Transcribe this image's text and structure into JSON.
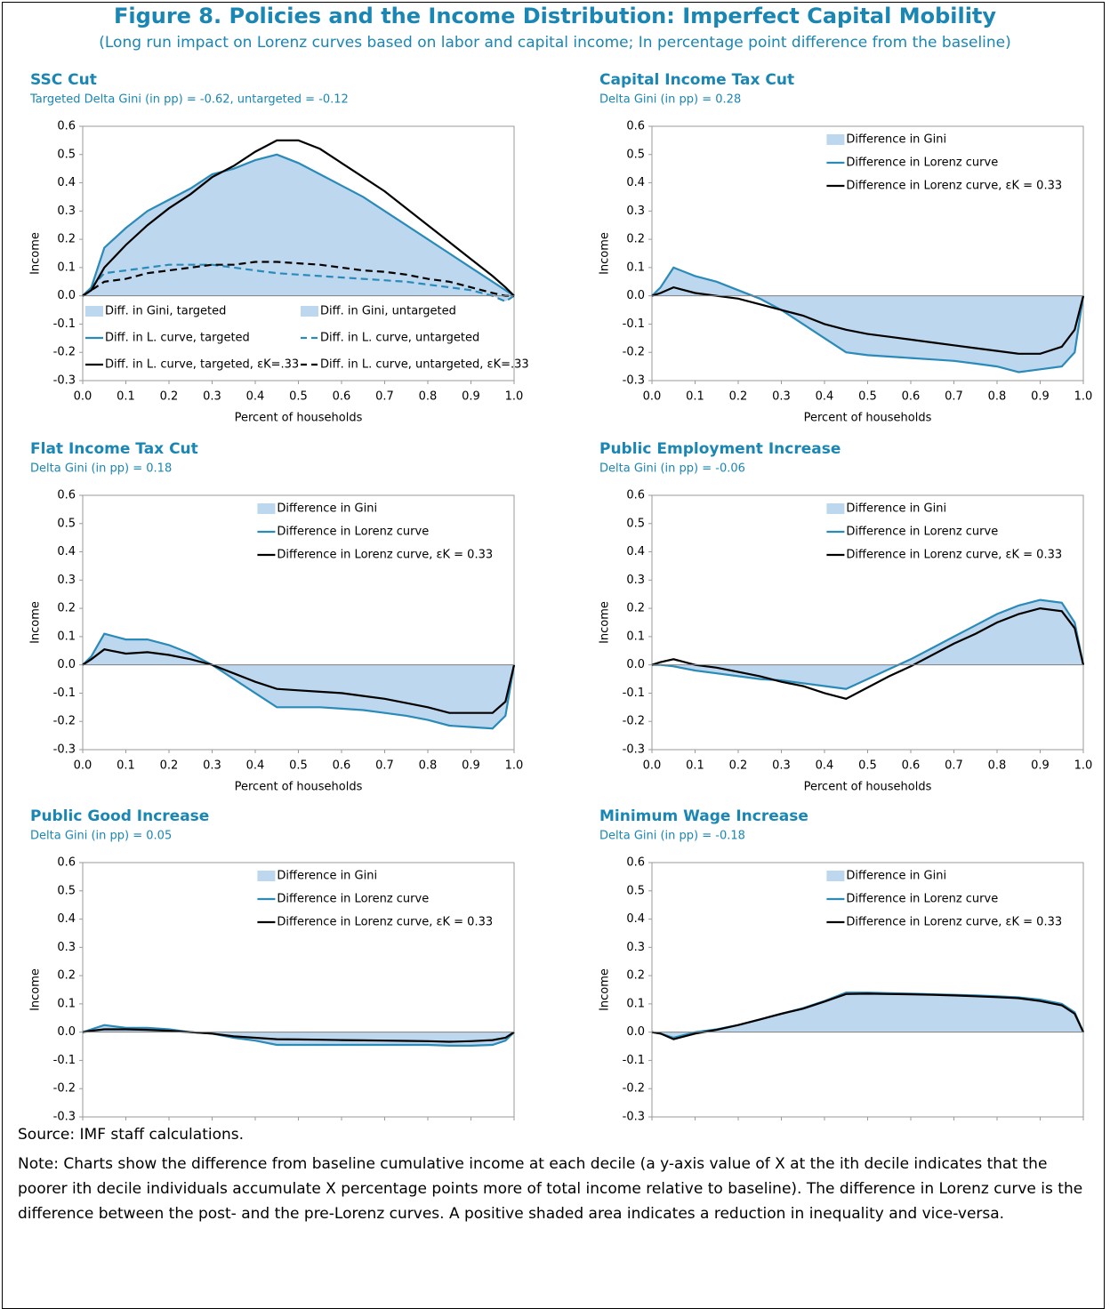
{
  "title": "Figure 8. Policies and the Income Distribution: Imperfect Capital Mobility",
  "subtitle": "(Long run impact on Lorenz curves based on labor and capital income; In percentage point difference from the baseline)",
  "source": "Source: IMF staff calculations.",
  "note": "Note: Charts show the difference from baseline cumulative income at each decile (a y-axis value of X at the ith decile indicates that the poorer ith decile individuals accumulate X percentage points more of total income relative to baseline). The difference in Lorenz curve is the difference between the post- and the pre-Lorenz curves. A positive shaded area indicates a reduction in inequality and vice-versa.",
  "chart_data": [
    {
      "type": "line",
      "title": "SSC Cut",
      "subtitle": "Targeted Delta Gini (in pp) = -0.62, untargeted = -0.12",
      "xlabel": "Percent of households",
      "ylabel": "Income",
      "legend": "lower",
      "xlim": [
        0,
        1
      ],
      "ylim": [
        -0.3,
        0.6
      ],
      "xticks": [
        {
          "value": 0,
          "label": "0.0"
        },
        0.1,
        0.2,
        0.3,
        0.4,
        0.5,
        0.6,
        0.7,
        0.8,
        0.9,
        {
          "value": 1,
          "label": "1.0"
        }
      ],
      "yticks": [
        -0.3,
        -0.2,
        -0.1,
        {
          "value": 0,
          "label": "0.0"
        },
        0.1,
        0.2,
        0.3,
        0.4,
        0.5,
        0.6
      ],
      "x": [
        0,
        0.02,
        0.05,
        0.1,
        0.15,
        0.2,
        0.25,
        0.3,
        0.35,
        0.4,
        0.45,
        0.5,
        0.55,
        0.6,
        0.65,
        0.7,
        0.75,
        0.8,
        0.85,
        0.9,
        0.95,
        0.98,
        1
      ],
      "series": [
        {
          "name": "Diff. in Gini, targeted",
          "kind": "area",
          "color": "#bdd7ee",
          "values": [
            0,
            0.03,
            0.17,
            0.24,
            0.3,
            0.34,
            0.38,
            0.43,
            0.45,
            0.48,
            0.5,
            0.47,
            0.43,
            0.39,
            0.35,
            0.3,
            0.25,
            0.2,
            0.15,
            0.1,
            0.05,
            0.02,
            0
          ]
        },
        {
          "name": "Diff. in Gini, untargeted",
          "kind": "area",
          "color": "#bdd7ee",
          "values": [
            0,
            0.03,
            0.08,
            0.09,
            0.1,
            0.11,
            0.11,
            0.11,
            0.1,
            0.09,
            0.08,
            0.075,
            0.07,
            0.065,
            0.06,
            0.055,
            0.05,
            0.04,
            0.03,
            0.02,
            0,
            -0.02,
            0
          ]
        },
        {
          "name": "Diff. in L. curve, targeted",
          "kind": "line",
          "color": "#2a8ab8",
          "values": [
            0,
            0.03,
            0.17,
            0.24,
            0.3,
            0.34,
            0.38,
            0.43,
            0.45,
            0.48,
            0.5,
            0.47,
            0.43,
            0.39,
            0.35,
            0.3,
            0.25,
            0.2,
            0.15,
            0.1,
            0.05,
            0.02,
            0
          ]
        },
        {
          "name": "Diff. in L. curve, untargeted",
          "kind": "line",
          "dash": true,
          "color": "#2a8ab8",
          "values": [
            0,
            0.03,
            0.08,
            0.09,
            0.1,
            0.11,
            0.11,
            0.11,
            0.1,
            0.09,
            0.08,
            0.075,
            0.07,
            0.065,
            0.06,
            0.055,
            0.05,
            0.04,
            0.03,
            0.02,
            0,
            -0.02,
            0
          ]
        },
        {
          "name": "Diff. in L. curve, targeted, εK=.33",
          "kind": "line",
          "color": "#000000",
          "values": [
            0,
            0.02,
            0.1,
            0.18,
            0.25,
            0.31,
            0.36,
            0.42,
            0.46,
            0.51,
            0.55,
            0.55,
            0.52,
            0.47,
            0.42,
            0.37,
            0.31,
            0.25,
            0.19,
            0.13,
            0.07,
            0.03,
            0
          ]
        },
        {
          "name": "Diff. in L. curve, untargeted, εK=.33",
          "kind": "line",
          "dash": true,
          "color": "#000000",
          "values": [
            0,
            0.02,
            0.05,
            0.06,
            0.08,
            0.09,
            0.1,
            0.11,
            0.11,
            0.12,
            0.12,
            0.115,
            0.11,
            0.1,
            0.09,
            0.085,
            0.075,
            0.06,
            0.05,
            0.03,
            0.01,
            0,
            0
          ]
        }
      ]
    },
    {
      "type": "line",
      "title": "Capital Income Tax Cut",
      "subtitle": "Delta Gini (in pp) = 0.28",
      "xlabel": "Percent of households",
      "ylabel": "Income",
      "legend": "upper",
      "xlim": [
        0,
        1
      ],
      "ylim": [
        -0.3,
        0.6
      ],
      "xticks": [
        {
          "value": 0,
          "label": "0.0"
        },
        0.1,
        0.2,
        0.3,
        0.4,
        0.5,
        0.6,
        0.7,
        0.8,
        0.9,
        {
          "value": 1,
          "label": "1.0"
        }
      ],
      "yticks": [
        -0.3,
        -0.2,
        -0.1,
        {
          "value": 0,
          "label": "0.0"
        },
        0.1,
        0.2,
        0.3,
        0.4,
        0.5,
        0.6
      ],
      "x": [
        0,
        0.02,
        0.05,
        0.1,
        0.15,
        0.2,
        0.25,
        0.3,
        0.35,
        0.4,
        0.45,
        0.5,
        0.55,
        0.6,
        0.65,
        0.7,
        0.75,
        0.8,
        0.85,
        0.9,
        0.95,
        0.98,
        1
      ],
      "series": [
        {
          "name": "Difference in Gini",
          "kind": "area",
          "color": "#bdd7ee",
          "values": [
            0,
            0.03,
            0.1,
            0.07,
            0.05,
            0.02,
            -0.01,
            -0.05,
            -0.1,
            -0.15,
            -0.2,
            -0.21,
            -0.215,
            -0.22,
            -0.225,
            -0.23,
            -0.24,
            -0.25,
            -0.27,
            -0.26,
            -0.25,
            -0.2,
            0
          ]
        },
        {
          "name": "Difference in Lorenz curve",
          "kind": "line",
          "color": "#2a8ab8",
          "values": [
            0,
            0.03,
            0.1,
            0.07,
            0.05,
            0.02,
            -0.01,
            -0.05,
            -0.1,
            -0.15,
            -0.2,
            -0.21,
            -0.215,
            -0.22,
            -0.225,
            -0.23,
            -0.24,
            -0.25,
            -0.27,
            -0.26,
            -0.25,
            -0.2,
            0
          ]
        },
        {
          "name": "Difference in Lorenz curve, εK = 0.33",
          "kind": "line",
          "color": "#000000",
          "values": [
            0,
            0.01,
            0.03,
            0.01,
            0,
            -0.01,
            -0.03,
            -0.05,
            -0.07,
            -0.1,
            -0.12,
            -0.135,
            -0.145,
            -0.155,
            -0.165,
            -0.175,
            -0.185,
            -0.195,
            -0.205,
            -0.205,
            -0.18,
            -0.12,
            0
          ]
        }
      ]
    },
    {
      "type": "line",
      "title": "Flat Income Tax Cut",
      "subtitle": "Delta Gini (in pp) = 0.18",
      "xlabel": "Percent of households",
      "ylabel": "Income",
      "legend": "upper",
      "xlim": [
        0,
        1
      ],
      "ylim": [
        -0.3,
        0.6
      ],
      "xticks": [
        {
          "value": 0,
          "label": "0.0"
        },
        0.1,
        0.2,
        0.3,
        0.4,
        0.5,
        0.6,
        0.7,
        0.8,
        0.9,
        {
          "value": 1,
          "label": "1.0"
        }
      ],
      "yticks": [
        -0.3,
        -0.2,
        -0.1,
        {
          "value": 0,
          "label": "0.0"
        },
        0.1,
        0.2,
        0.3,
        0.4,
        0.5,
        0.6
      ],
      "x": [
        0,
        0.02,
        0.05,
        0.1,
        0.15,
        0.2,
        0.25,
        0.3,
        0.35,
        0.4,
        0.45,
        0.5,
        0.55,
        0.6,
        0.65,
        0.7,
        0.75,
        0.8,
        0.85,
        0.9,
        0.95,
        0.98,
        1
      ],
      "series": [
        {
          "name": "Difference in Gini",
          "kind": "area",
          "color": "#bdd7ee",
          "values": [
            0,
            0.03,
            0.11,
            0.09,
            0.09,
            0.07,
            0.04,
            0,
            -0.05,
            -0.1,
            -0.15,
            -0.15,
            -0.15,
            -0.155,
            -0.16,
            -0.17,
            -0.18,
            -0.195,
            -0.215,
            -0.22,
            -0.225,
            -0.18,
            0
          ]
        },
        {
          "name": "Difference in Lorenz curve",
          "kind": "line",
          "color": "#2a8ab8",
          "values": [
            0,
            0.03,
            0.11,
            0.09,
            0.09,
            0.07,
            0.04,
            0,
            -0.05,
            -0.1,
            -0.15,
            -0.15,
            -0.15,
            -0.155,
            -0.16,
            -0.17,
            -0.18,
            -0.195,
            -0.215,
            -0.22,
            -0.225,
            -0.18,
            0
          ]
        },
        {
          "name": "Difference in Lorenz curve, εK = 0.33",
          "kind": "line",
          "color": "#000000",
          "values": [
            0,
            0.02,
            0.055,
            0.04,
            0.045,
            0.035,
            0.02,
            0,
            -0.03,
            -0.06,
            -0.085,
            -0.09,
            -0.095,
            -0.1,
            -0.11,
            -0.12,
            -0.135,
            -0.15,
            -0.17,
            -0.17,
            -0.17,
            -0.13,
            0
          ]
        }
      ]
    },
    {
      "type": "line",
      "title": "Public Employment Increase",
      "subtitle": "Delta Gini (in pp) = -0.06",
      "xlabel": "Percent of households",
      "ylabel": "Income",
      "legend": "upper",
      "xlim": [
        0,
        1
      ],
      "ylim": [
        -0.3,
        0.6
      ],
      "xticks": [
        {
          "value": 0,
          "label": "0.0"
        },
        0.1,
        0.2,
        0.3,
        0.4,
        0.5,
        0.6,
        0.7,
        0.8,
        0.9,
        {
          "value": 1,
          "label": "1.0"
        }
      ],
      "yticks": [
        -0.3,
        -0.2,
        -0.1,
        {
          "value": 0,
          "label": "0.0"
        },
        0.1,
        0.2,
        0.3,
        0.4,
        0.5,
        0.6
      ],
      "x": [
        0,
        0.02,
        0.05,
        0.1,
        0.15,
        0.2,
        0.25,
        0.3,
        0.35,
        0.4,
        0.45,
        0.5,
        0.55,
        0.6,
        0.65,
        0.7,
        0.75,
        0.8,
        0.85,
        0.9,
        0.95,
        0.98,
        1
      ],
      "series": [
        {
          "name": "Difference in Gini",
          "kind": "area",
          "color": "#bdd7ee",
          "values": [
            0,
            0,
            -0.005,
            -0.02,
            -0.03,
            -0.04,
            -0.05,
            -0.055,
            -0.065,
            -0.075,
            -0.085,
            -0.05,
            -0.015,
            0.02,
            0.06,
            0.1,
            0.14,
            0.18,
            0.21,
            0.23,
            0.22,
            0.15,
            0
          ]
        },
        {
          "name": "Difference in Lorenz curve",
          "kind": "line",
          "color": "#2a8ab8",
          "values": [
            0,
            0,
            -0.005,
            -0.02,
            -0.03,
            -0.04,
            -0.05,
            -0.055,
            -0.065,
            -0.075,
            -0.085,
            -0.05,
            -0.015,
            0.02,
            0.06,
            0.1,
            0.14,
            0.18,
            0.21,
            0.23,
            0.22,
            0.15,
            0
          ]
        },
        {
          "name": "Difference in Lorenz curve, εK = 0.33",
          "kind": "line",
          "color": "#000000",
          "values": [
            0,
            0.01,
            0.02,
            0,
            -0.01,
            -0.025,
            -0.04,
            -0.06,
            -0.075,
            -0.1,
            -0.12,
            -0.08,
            -0.04,
            -0.005,
            0.035,
            0.075,
            0.11,
            0.15,
            0.18,
            0.2,
            0.19,
            0.13,
            0
          ]
        }
      ]
    },
    {
      "type": "line",
      "title": "Public Good Increase",
      "subtitle": "Delta Gini (in pp) = 0.05",
      "xlabel": "Percent of households",
      "ylabel": "Income",
      "legend": "upper",
      "xlim": [
        0,
        1
      ],
      "ylim": [
        -0.3,
        0.6
      ],
      "xticks": [
        {
          "value": 0,
          "label": "0.0"
        },
        0.1,
        0.2,
        0.3,
        0.4,
        0.5,
        0.6,
        0.7,
        0.8,
        0.9,
        {
          "value": 1,
          "label": "1.0"
        }
      ],
      "yticks": [
        -0.3,
        -0.2,
        -0.1,
        {
          "value": 0,
          "label": "0.0"
        },
        0.1,
        0.2,
        0.3,
        0.4,
        0.5,
        0.6
      ],
      "x": [
        0,
        0.02,
        0.05,
        0.1,
        0.15,
        0.2,
        0.25,
        0.3,
        0.35,
        0.4,
        0.45,
        0.5,
        0.55,
        0.6,
        0.65,
        0.7,
        0.75,
        0.8,
        0.85,
        0.9,
        0.95,
        0.98,
        1
      ],
      "series": [
        {
          "name": "Difference in Gini",
          "kind": "area",
          "color": "#bdd7ee",
          "values": [
            0,
            0.01,
            0.025,
            0.015,
            0.015,
            0.01,
            0,
            -0.005,
            -0.02,
            -0.03,
            -0.045,
            -0.045,
            -0.045,
            -0.045,
            -0.045,
            -0.045,
            -0.045,
            -0.045,
            -0.048,
            -0.048,
            -0.045,
            -0.03,
            0
          ]
        },
        {
          "name": "Difference in Lorenz curve",
          "kind": "line",
          "color": "#2a8ab8",
          "values": [
            0,
            0.01,
            0.025,
            0.015,
            0.015,
            0.01,
            0,
            -0.005,
            -0.02,
            -0.03,
            -0.045,
            -0.045,
            -0.045,
            -0.045,
            -0.045,
            -0.045,
            -0.045,
            -0.045,
            -0.048,
            -0.048,
            -0.045,
            -0.03,
            0
          ]
        },
        {
          "name": "Difference in Lorenz curve, εK = 0.33",
          "kind": "line",
          "color": "#000000",
          "values": [
            0,
            0.005,
            0.01,
            0.01,
            0.008,
            0.005,
            0,
            -0.005,
            -0.015,
            -0.02,
            -0.025,
            -0.026,
            -0.027,
            -0.028,
            -0.029,
            -0.03,
            -0.031,
            -0.032,
            -0.034,
            -0.032,
            -0.028,
            -0.02,
            0
          ]
        }
      ]
    },
    {
      "type": "line",
      "title": "Minimum Wage Increase",
      "subtitle": "Delta Gini (in pp) = -0.18",
      "xlabel": "Percent of households",
      "ylabel": "Income",
      "legend": "upper",
      "xlim": [
        0,
        1
      ],
      "ylim": [
        -0.3,
        0.6
      ],
      "xticks": [
        {
          "value": 0,
          "label": "0.0"
        },
        0.1,
        0.2,
        0.3,
        0.4,
        0.5,
        0.6,
        0.7,
        0.8,
        0.9,
        {
          "value": 1,
          "label": "1.0"
        }
      ],
      "yticks": [
        -0.3,
        -0.2,
        -0.1,
        {
          "value": 0,
          "label": "0.0"
        },
        0.1,
        0.2,
        0.3,
        0.4,
        0.5,
        0.6
      ],
      "x": [
        0,
        0.02,
        0.05,
        0.1,
        0.15,
        0.2,
        0.25,
        0.3,
        0.35,
        0.4,
        0.45,
        0.5,
        0.55,
        0.6,
        0.65,
        0.7,
        0.75,
        0.8,
        0.85,
        0.9,
        0.95,
        0.98,
        1
      ],
      "series": [
        {
          "name": "Difference in Gini",
          "kind": "area",
          "color": "#bdd7ee",
          "values": [
            0,
            -0.005,
            -0.02,
            0,
            0.01,
            0.025,
            0.045,
            0.065,
            0.085,
            0.11,
            0.14,
            0.14,
            0.138,
            0.136,
            0.134,
            0.132,
            0.13,
            0.127,
            0.123,
            0.115,
            0.1,
            0.07,
            0
          ]
        },
        {
          "name": "Difference in Lorenz curve",
          "kind": "line",
          "color": "#2a8ab8",
          "values": [
            0,
            -0.005,
            -0.02,
            0,
            0.01,
            0.025,
            0.045,
            0.065,
            0.085,
            0.11,
            0.14,
            0.14,
            0.138,
            0.136,
            0.134,
            0.132,
            0.13,
            0.127,
            0.123,
            0.115,
            0.1,
            0.07,
            0
          ]
        },
        {
          "name": "Difference in Lorenz curve, εK = 0.33",
          "kind": "line",
          "color": "#000000",
          "values": [
            0,
            -0.005,
            -0.025,
            -0.005,
            0.008,
            0.025,
            0.045,
            0.065,
            0.083,
            0.108,
            0.135,
            0.136,
            0.135,
            0.134,
            0.132,
            0.13,
            0.127,
            0.124,
            0.12,
            0.11,
            0.095,
            0.065,
            0
          ]
        }
      ]
    }
  ]
}
